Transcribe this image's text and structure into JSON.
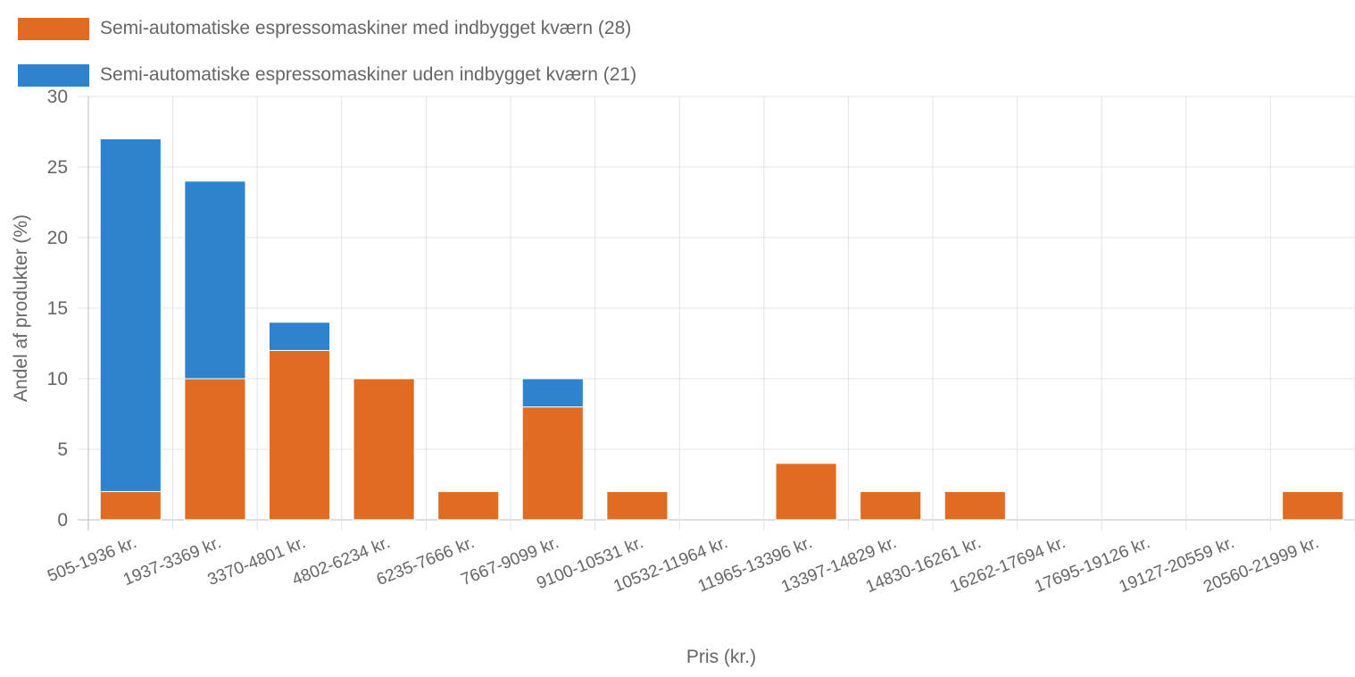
{
  "chart_data": {
    "type": "bar",
    "stacked": true,
    "categories": [
      "505-1936 kr.",
      "1937-3369 kr.",
      "3370-4801 kr.",
      "4802-6234 kr.",
      "6235-7666 kr.",
      "7667-9099 kr.",
      "9100-10531 kr.",
      "10532-11964 kr.",
      "11965-13396 kr.",
      "13397-14829 kr.",
      "14830-16261 kr.",
      "16262-17694 kr.",
      "17695-19126 kr.",
      "19127-20559 kr.",
      "20560-21999 kr."
    ],
    "series": [
      {
        "name": "Semi-automatiske espressomaskiner med indbygget kværn (28)",
        "color": "#e06c22",
        "values": [
          2,
          10,
          12,
          10,
          2,
          8,
          2,
          0,
          4,
          2,
          2,
          0,
          0,
          0,
          2
        ]
      },
      {
        "name": "Semi-automatiske espressomaskiner uden indbygget kværn (21)",
        "color": "#2f82cc",
        "values": [
          25,
          14,
          2,
          0,
          0,
          2,
          0,
          0,
          0,
          0,
          0,
          0,
          0,
          0,
          0
        ]
      }
    ],
    "xlabel": "Pris (kr.)",
    "ylabel": "Andel af produkter (%)",
    "ylim": [
      0,
      30
    ],
    "yticks": [
      0,
      5,
      10,
      15,
      20,
      25,
      30
    ],
    "grid": true,
    "legend_position": "top-left"
  }
}
